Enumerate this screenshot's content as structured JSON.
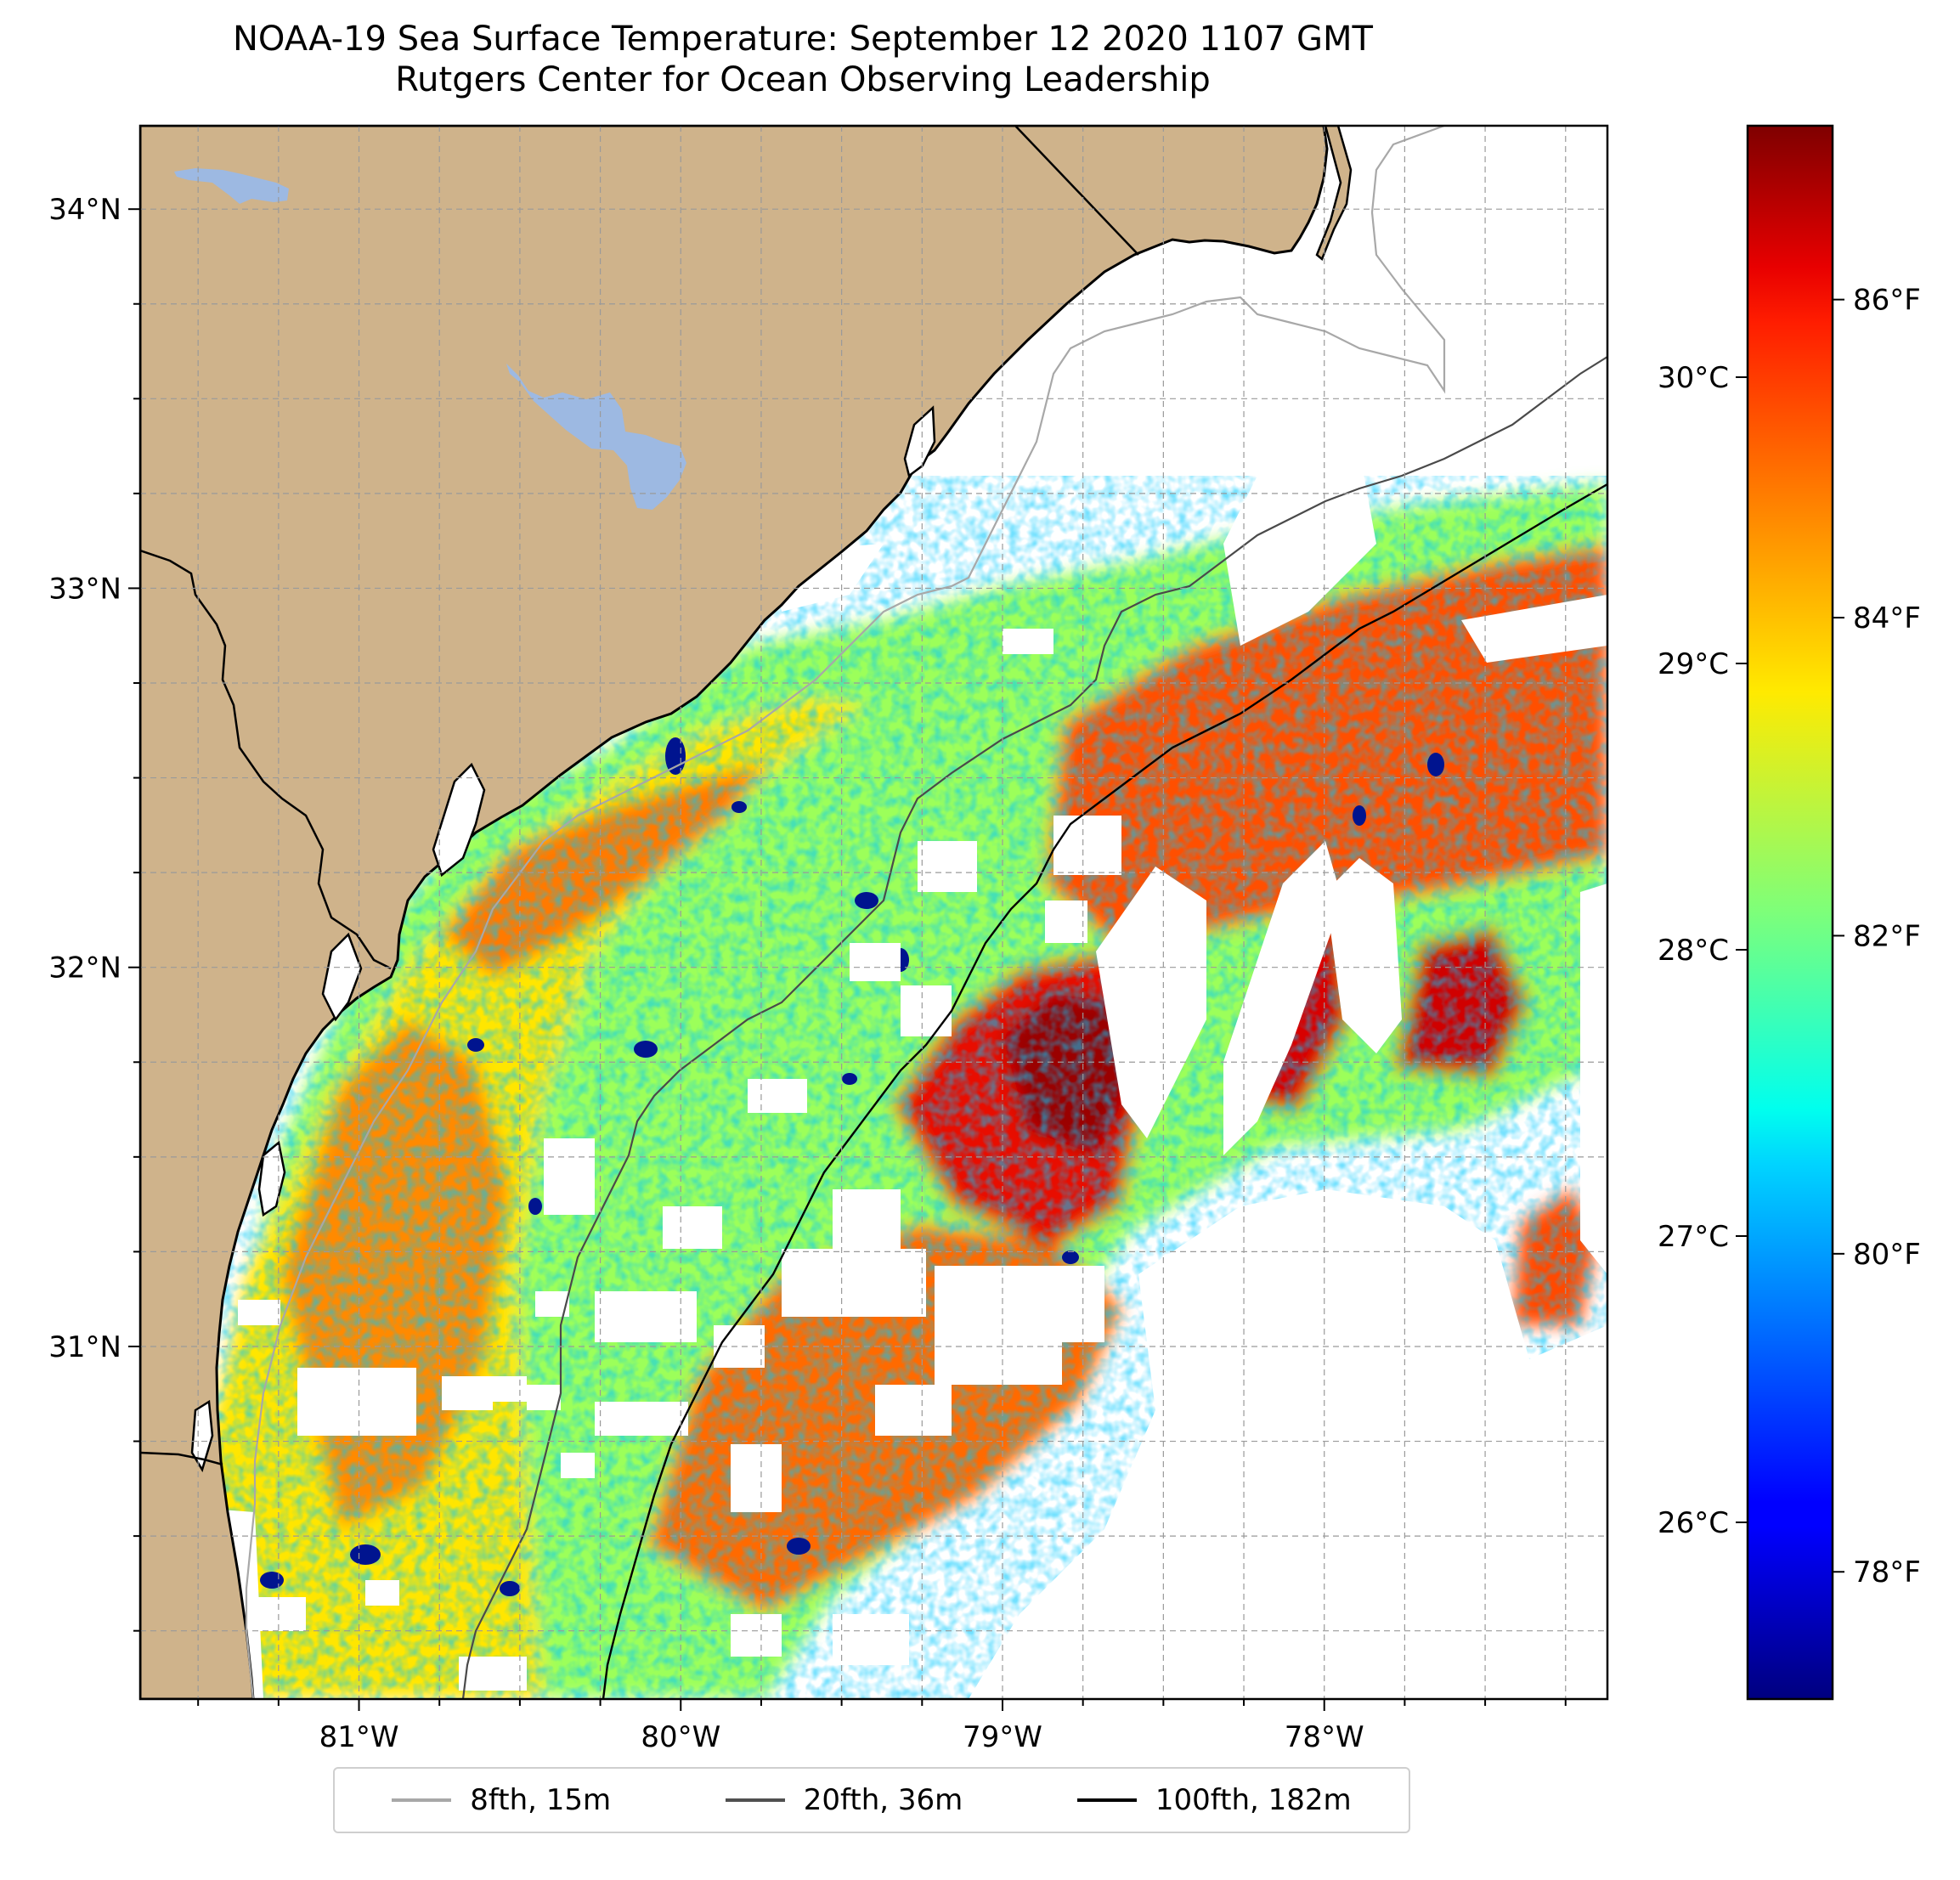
{
  "title": {
    "line1": "NOAA-19 Sea Surface Temperature: September 12 2020 1107 GMT",
    "line2": "Rutgers Center for Ocean Observing Leadership"
  },
  "map": {
    "lon_range": [
      -81.68,
      -77.12
    ],
    "lat_range": [
      30.07,
      34.22
    ],
    "lat_ticks": [
      {
        "value": 34,
        "label": "34°N"
      },
      {
        "value": 33,
        "label": "33°N"
      },
      {
        "value": 32,
        "label": "32°N"
      },
      {
        "value": 31,
        "label": "31°N"
      }
    ],
    "lon_ticks": [
      {
        "value": -81,
        "label": "81°W"
      },
      {
        "value": -80,
        "label": "80°W"
      },
      {
        "value": -79,
        "label": "79°W"
      },
      {
        "value": -78,
        "label": "78°W"
      }
    ],
    "gridlines": true,
    "colors": {
      "land": "#cfb38b",
      "lakes": "#9db9e2",
      "ocean_nodata": "#ffffff"
    }
  },
  "colorbar": {
    "colormap": "jet",
    "celsius_ticks": [
      {
        "value": 30,
        "label": "30°C"
      },
      {
        "value": 29,
        "label": "29°C"
      },
      {
        "value": 28,
        "label": "28°C"
      },
      {
        "value": 27,
        "label": "27°C"
      },
      {
        "value": 26,
        "label": "26°C"
      }
    ],
    "fahrenheit_ticks": [
      {
        "value": 86,
        "label": "86°F"
      },
      {
        "value": 84,
        "label": "84°F"
      },
      {
        "value": 82,
        "label": "82°F"
      },
      {
        "value": 80,
        "label": "80°F"
      },
      {
        "value": 78,
        "label": "78°F"
      }
    ]
  },
  "legend": {
    "placement": "bottom-center",
    "items": [
      {
        "label": "8fth, 15m",
        "color": "#a8a8a8"
      },
      {
        "label": "20fth, 36m",
        "color": "#505050"
      },
      {
        "label": "100fth, 182m",
        "color": "#000000"
      }
    ]
  }
}
